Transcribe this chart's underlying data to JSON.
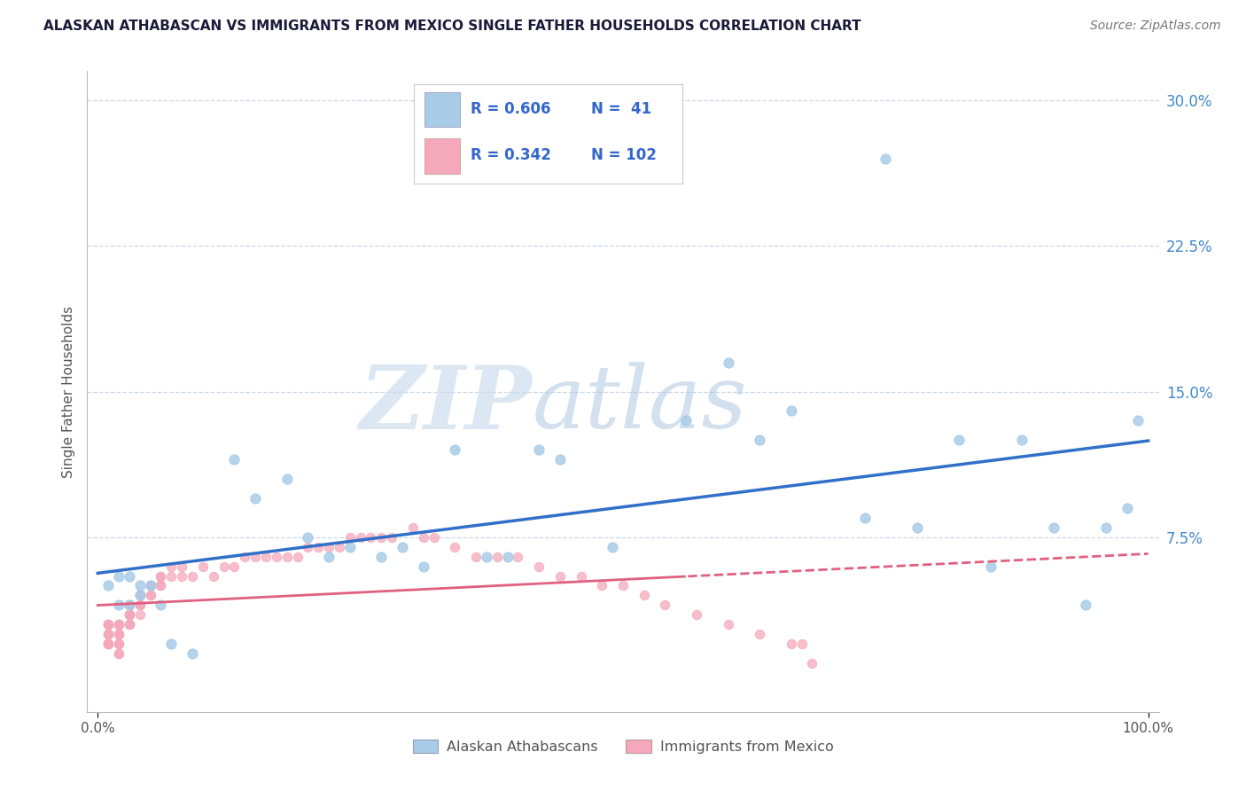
{
  "title": "ALASKAN ATHABASCAN VS IMMIGRANTS FROM MEXICO SINGLE FATHER HOUSEHOLDS CORRELATION CHART",
  "source": "Source: ZipAtlas.com",
  "ylabel": "Single Father Households",
  "R1": 0.606,
  "N1": 41,
  "R2": 0.342,
  "N2": 102,
  "legend_label1": "Alaskan Athabascans",
  "legend_label2": "Immigrants from Mexico",
  "color_blue": "#a8cce8",
  "color_pink": "#f5a8bb",
  "line_blue": "#3070c8",
  "line_pink": "#e06080",
  "background": "#ffffff",
  "watermark_zip": "ZIP",
  "watermark_atlas": "atlas",
  "blue_x": [
    0.01,
    0.02,
    0.02,
    0.03,
    0.03,
    0.04,
    0.04,
    0.05,
    0.06,
    0.13,
    0.15,
    0.18,
    0.2,
    0.22,
    0.24,
    0.27,
    0.29,
    0.31,
    0.34,
    0.37,
    0.39,
    0.42,
    0.44,
    0.49,
    0.56,
    0.6,
    0.63,
    0.66,
    0.73,
    0.78,
    0.82,
    0.85,
    0.88,
    0.91,
    0.94,
    0.96,
    0.98,
    0.99,
    0.07,
    0.09,
    0.75
  ],
  "blue_y": [
    0.05,
    0.04,
    0.055,
    0.04,
    0.055,
    0.05,
    0.045,
    0.05,
    0.04,
    0.115,
    0.095,
    0.105,
    0.075,
    0.065,
    0.07,
    0.065,
    0.07,
    0.06,
    0.12,
    0.065,
    0.065,
    0.12,
    0.115,
    0.07,
    0.135,
    0.165,
    0.125,
    0.14,
    0.085,
    0.08,
    0.125,
    0.06,
    0.125,
    0.08,
    0.04,
    0.08,
    0.09,
    0.135,
    0.02,
    0.015,
    0.27
  ],
  "pink_x": [
    0.01,
    0.01,
    0.01,
    0.01,
    0.01,
    0.01,
    0.01,
    0.01,
    0.01,
    0.01,
    0.01,
    0.01,
    0.01,
    0.01,
    0.01,
    0.01,
    0.02,
    0.02,
    0.02,
    0.02,
    0.02,
    0.02,
    0.02,
    0.02,
    0.02,
    0.02,
    0.02,
    0.02,
    0.02,
    0.02,
    0.03,
    0.03,
    0.03,
    0.03,
    0.03,
    0.03,
    0.03,
    0.03,
    0.03,
    0.03,
    0.04,
    0.04,
    0.04,
    0.04,
    0.04,
    0.04,
    0.04,
    0.04,
    0.05,
    0.05,
    0.05,
    0.05,
    0.05,
    0.05,
    0.06,
    0.06,
    0.06,
    0.06,
    0.07,
    0.07,
    0.08,
    0.08,
    0.09,
    0.1,
    0.11,
    0.12,
    0.13,
    0.14,
    0.15,
    0.16,
    0.17,
    0.18,
    0.19,
    0.2,
    0.21,
    0.22,
    0.23,
    0.24,
    0.25,
    0.26,
    0.27,
    0.28,
    0.3,
    0.31,
    0.32,
    0.34,
    0.36,
    0.38,
    0.4,
    0.42,
    0.44,
    0.46,
    0.48,
    0.5,
    0.52,
    0.54,
    0.57,
    0.6,
    0.63,
    0.66,
    0.67,
    0.68
  ],
  "pink_y": [
    0.02,
    0.02,
    0.02,
    0.025,
    0.025,
    0.03,
    0.03,
    0.03,
    0.03,
    0.03,
    0.03,
    0.025,
    0.025,
    0.02,
    0.02,
    0.02,
    0.025,
    0.025,
    0.03,
    0.03,
    0.03,
    0.03,
    0.03,
    0.025,
    0.025,
    0.02,
    0.02,
    0.02,
    0.015,
    0.015,
    0.03,
    0.03,
    0.03,
    0.035,
    0.035,
    0.035,
    0.04,
    0.04,
    0.035,
    0.035,
    0.035,
    0.04,
    0.04,
    0.04,
    0.045,
    0.045,
    0.045,
    0.045,
    0.045,
    0.05,
    0.05,
    0.05,
    0.05,
    0.045,
    0.05,
    0.05,
    0.055,
    0.055,
    0.055,
    0.06,
    0.06,
    0.055,
    0.055,
    0.06,
    0.055,
    0.06,
    0.06,
    0.065,
    0.065,
    0.065,
    0.065,
    0.065,
    0.065,
    0.07,
    0.07,
    0.07,
    0.07,
    0.075,
    0.075,
    0.075,
    0.075,
    0.075,
    0.08,
    0.075,
    0.075,
    0.07,
    0.065,
    0.065,
    0.065,
    0.06,
    0.055,
    0.055,
    0.05,
    0.05,
    0.045,
    0.04,
    0.035,
    0.03,
    0.025,
    0.02,
    0.02,
    0.01
  ]
}
